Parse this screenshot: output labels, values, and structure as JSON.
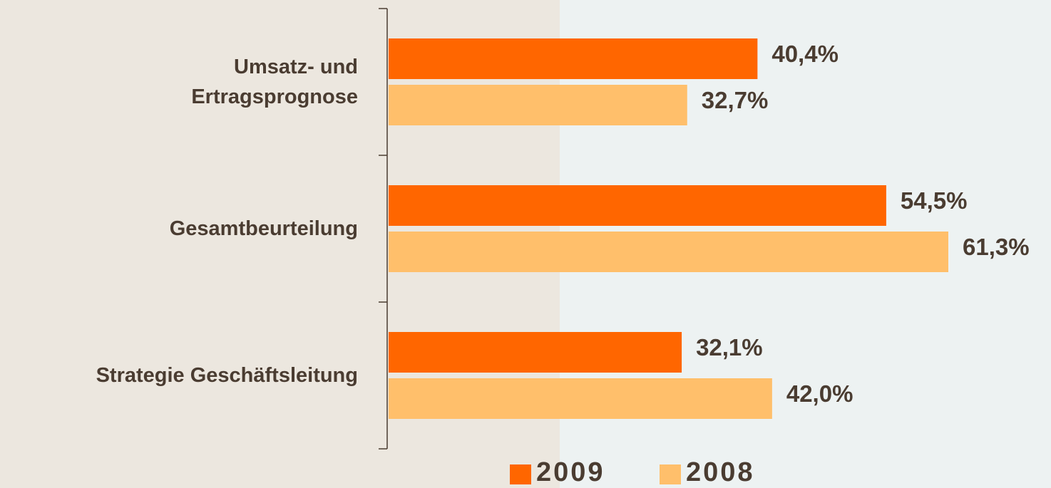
{
  "chart_data": {
    "type": "bar",
    "orientation": "horizontal",
    "categories": [
      "Umsatz- und\nErtragsprognose",
      "Gesamtbeurteilung",
      "Strategie Geschäftsleitung"
    ],
    "series": [
      {
        "name": "2009",
        "color": "#ff6600",
        "values": [
          40.4,
          54.5,
          32.1
        ],
        "value_labels": [
          "40,4%",
          "54,5%",
          "32,1%"
        ]
      },
      {
        "name": "2008",
        "color": "#ffbf6b",
        "values": [
          32.7,
          61.3,
          42.0
        ],
        "value_labels": [
          "32,7%",
          "61,3%",
          "42,0%"
        ]
      }
    ]
  }
}
